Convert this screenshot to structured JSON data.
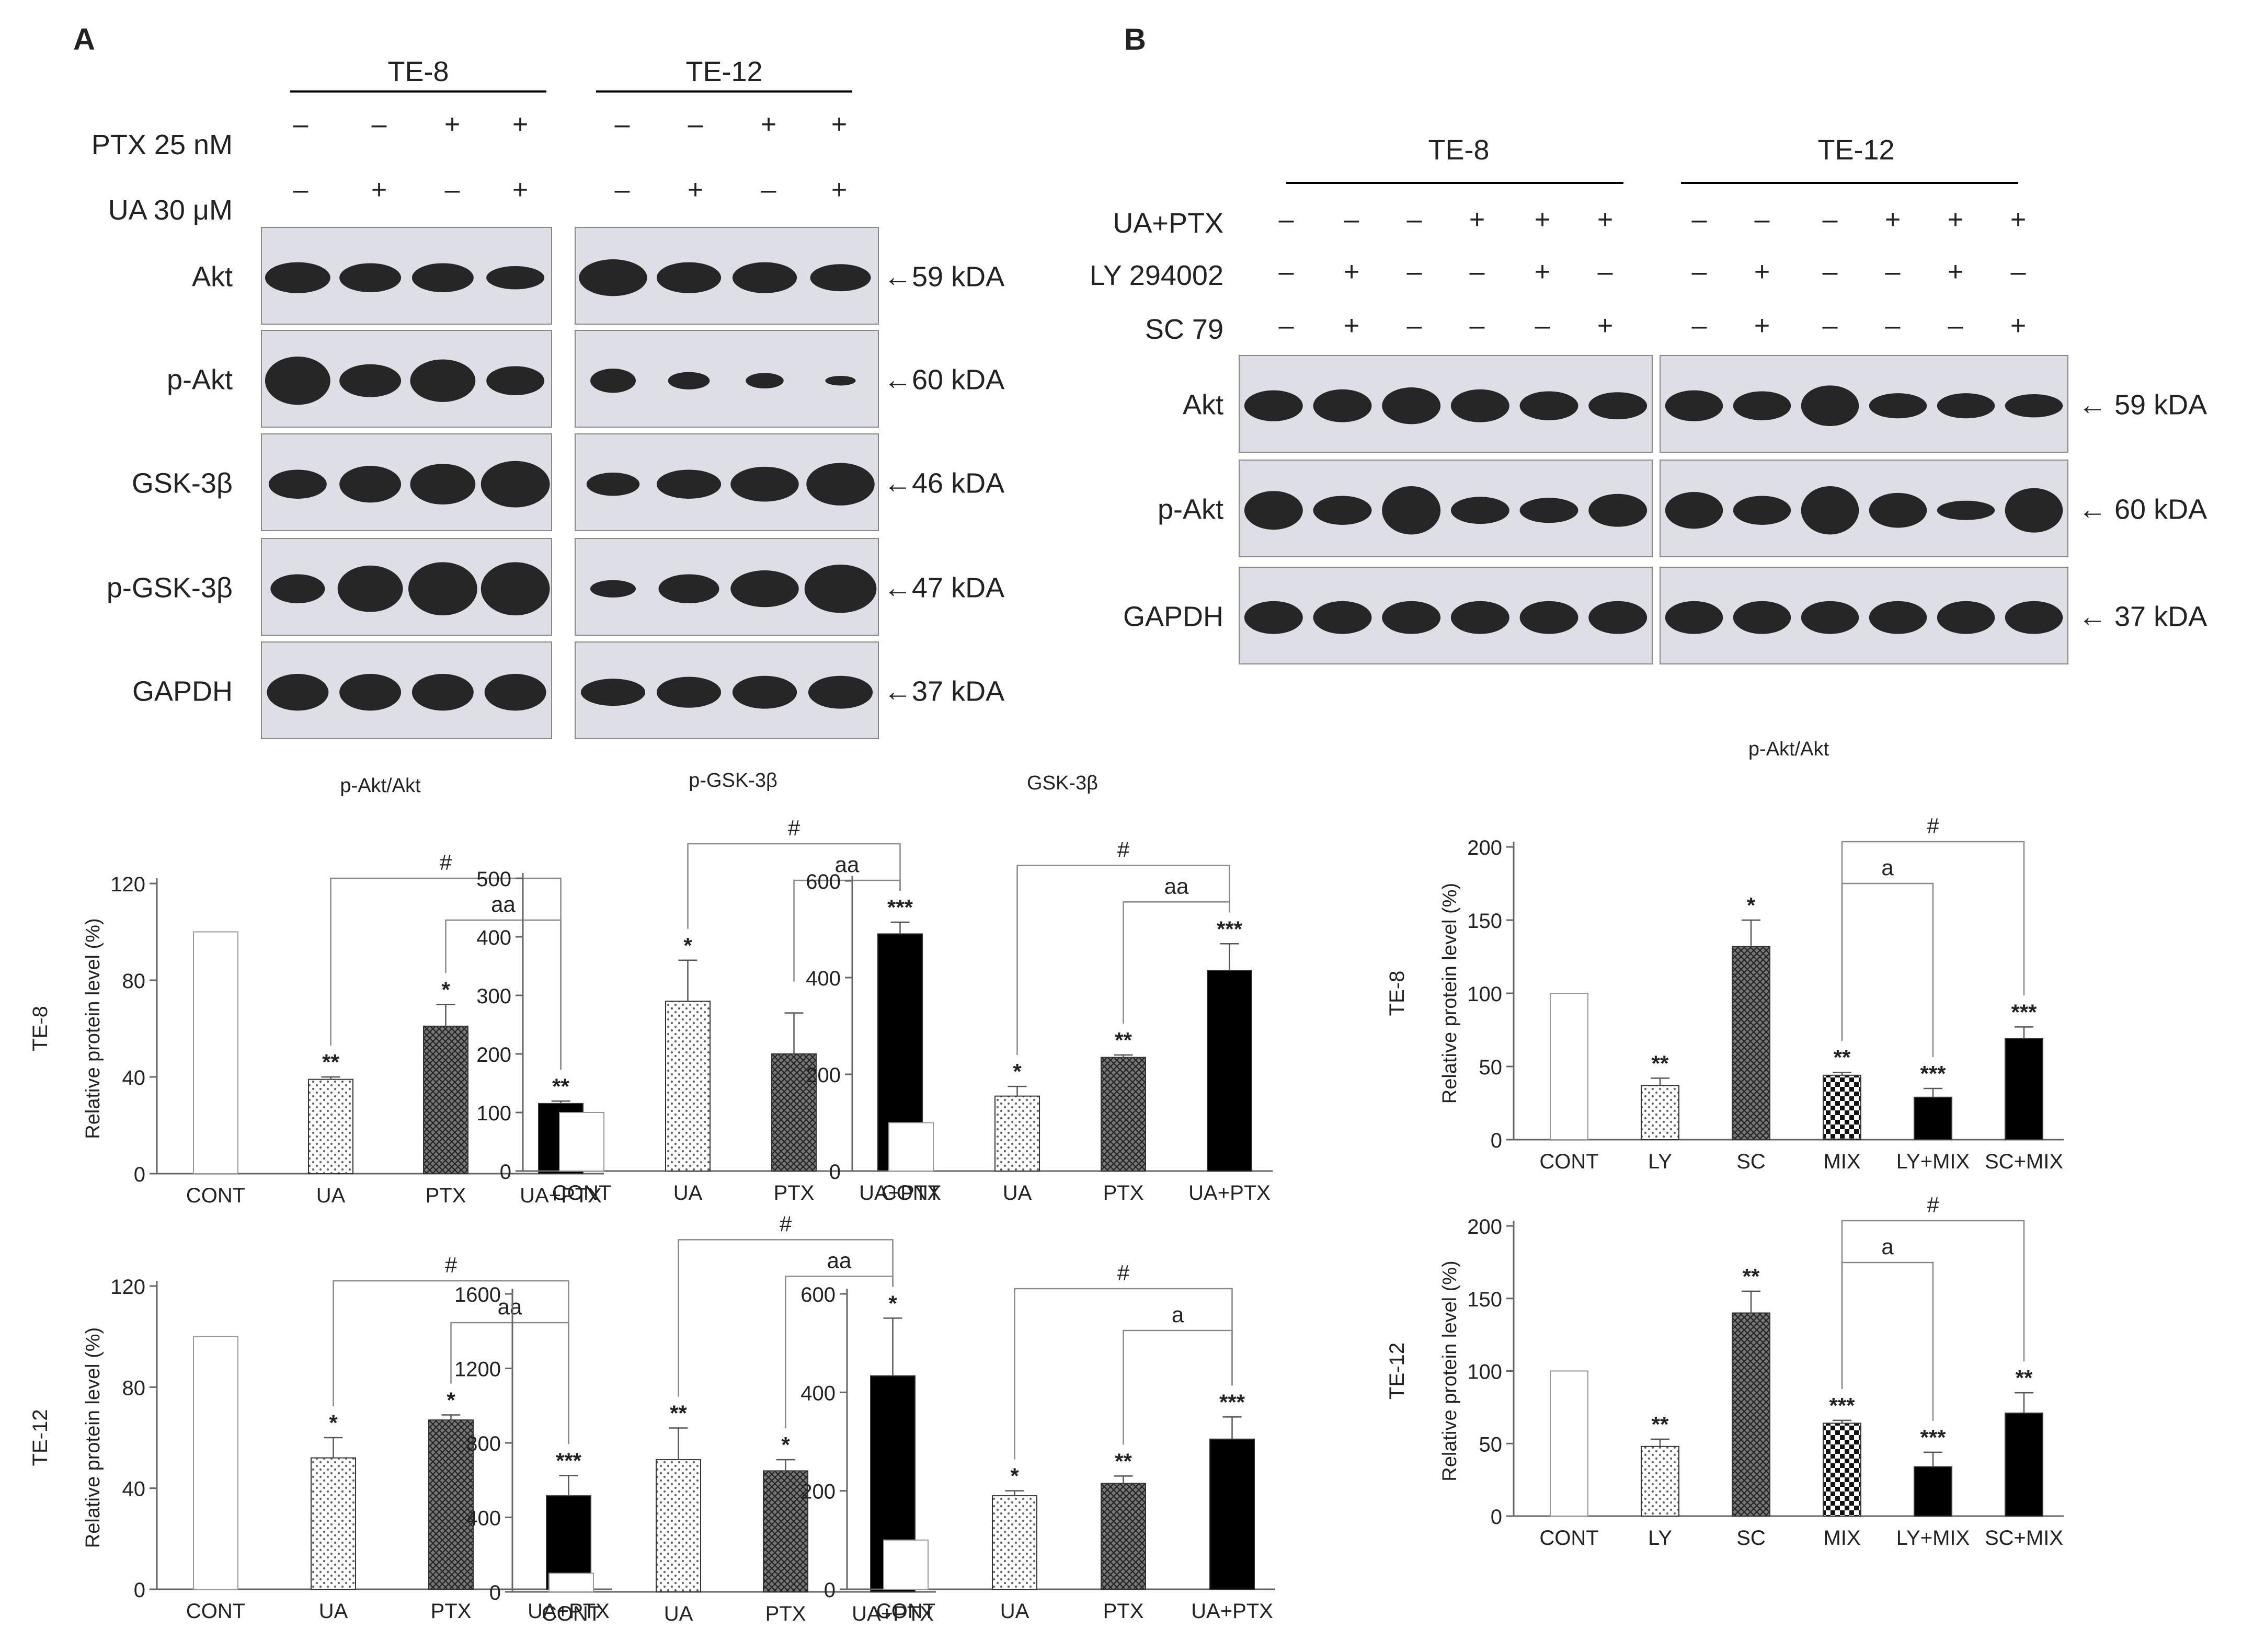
{
  "panel_a": {
    "label": "A",
    "cell_lines": [
      "TE-8",
      "TE-12"
    ],
    "treatment_rows": [
      {
        "label": "PTX 25 nM",
        "te8": [
          "–",
          "–",
          "+",
          "+"
        ],
        "te12": [
          "–",
          "–",
          "+",
          "+"
        ]
      },
      {
        "label": "UA 30 μM",
        "te8": [
          "–",
          "+",
          "–",
          "+"
        ],
        "te12": [
          "–",
          "+",
          "–",
          "+"
        ]
      }
    ],
    "blot_rows": [
      {
        "label": "Akt",
        "kda": "←59 kDA"
      },
      {
        "label": "p-Akt",
        "kda": "←60 kDA"
      },
      {
        "label": "GSK-3β",
        "kda": "←46 kDA"
      },
      {
        "label": "p-GSK-3β",
        "kda": "←47 kDA"
      },
      {
        "label": "GAPDH",
        "kda": "←37 kDA"
      }
    ]
  },
  "panel_b": {
    "label": "B",
    "cell_lines": [
      "TE-8",
      "TE-12"
    ],
    "treatment_rows": [
      {
        "label": "UA+PTX",
        "signs": [
          "–",
          "–",
          "–",
          "+",
          "+",
          "+"
        ]
      },
      {
        "label": "LY 294002",
        "signs": [
          "–",
          "+",
          "–",
          "–",
          "+",
          "–"
        ]
      },
      {
        "label": "SC 79",
        "signs": [
          "–",
          "+",
          "–",
          "–",
          "–",
          "+"
        ]
      }
    ],
    "blot_rows": [
      {
        "label": "Akt",
        "kda": "← 59 kDA"
      },
      {
        "label": "p-Akt",
        "kda": "← 60 kDA"
      },
      {
        "label": "GAPDH",
        "kda": "← 37 kDA"
      }
    ]
  },
  "colors": {
    "black": "#000000",
    "pattern_gray": "#555555",
    "axis": "#666666"
  },
  "chart_data": [
    {
      "id": "a_pakt_te8",
      "type": "bar",
      "title": "p-Akt/Akt",
      "row_label": "TE-8",
      "ylabel": "Relative protein level (%)",
      "categories": [
        "CONT",
        "UA",
        "PTX",
        "UA+PTX"
      ],
      "values": [
        100,
        39,
        61,
        29
      ],
      "errors": [
        0,
        1,
        9,
        1
      ],
      "ylim": [
        0,
        120
      ],
      "yticks": [
        0,
        40,
        80,
        120
      ],
      "stars": [
        "",
        "**",
        "*",
        "**"
      ],
      "fills": [
        "white",
        "dots",
        "cross",
        "black"
      ],
      "brackets": [
        {
          "from": 1,
          "to": 3,
          "label": "#"
        },
        {
          "from": 2,
          "to": 3,
          "label": "aa"
        }
      ]
    },
    {
      "id": "a_pgsk_te8",
      "type": "bar",
      "title": "p-GSK-3β",
      "ylabel": "",
      "categories": [
        "CONT",
        "UA",
        "PTX",
        "UA+PTX"
      ],
      "values": [
        100,
        290,
        200,
        405
      ],
      "errors": [
        0,
        70,
        70,
        20
      ],
      "ylim": [
        0,
        500
      ],
      "yticks": [
        0,
        100,
        200,
        300,
        400,
        500
      ],
      "stars": [
        "",
        "*",
        "",
        "***"
      ],
      "fills": [
        "white",
        "dots",
        "cross",
        "black"
      ],
      "brackets": [
        {
          "from": 1,
          "to": 3,
          "label": "#"
        },
        {
          "from": 2,
          "to": 3,
          "label": "aa"
        }
      ]
    },
    {
      "id": "a_gsk_te8",
      "type": "bar",
      "title": "GSK-3β",
      "ylabel": "",
      "categories": [
        "CONT",
        "UA",
        "PTX",
        "UA+PTX"
      ],
      "values": [
        100,
        155,
        235,
        415
      ],
      "errors": [
        0,
        20,
        5,
        55
      ],
      "ylim": [
        0,
        600
      ],
      "yticks": [
        0,
        200,
        400,
        600
      ],
      "stars": [
        "",
        "*",
        "**",
        "***"
      ],
      "fills": [
        "white",
        "dots",
        "cross",
        "black"
      ],
      "brackets": [
        {
          "from": 1,
          "to": 3,
          "label": "#"
        },
        {
          "from": 2,
          "to": 3,
          "label": "aa"
        }
      ]
    },
    {
      "id": "a_pakt_te12",
      "type": "bar",
      "row_label": "TE-12",
      "ylabel": "Relative protein level (%)",
      "categories": [
        "CONT",
        "UA",
        "PTX",
        "UA+PTX"
      ],
      "values": [
        100,
        52,
        67,
        37
      ],
      "errors": [
        0,
        8,
        2,
        8
      ],
      "ylim": [
        0,
        120
      ],
      "yticks": [
        0,
        40,
        80,
        120
      ],
      "stars": [
        "",
        "*",
        "*",
        "***"
      ],
      "fills": [
        "white",
        "dots",
        "cross",
        "black"
      ],
      "brackets": [
        {
          "from": 1,
          "to": 3,
          "label": "#"
        },
        {
          "from": 2,
          "to": 3,
          "label": "aa"
        }
      ]
    },
    {
      "id": "a_pgsk_te12",
      "type": "bar",
      "ylabel": "",
      "categories": [
        "CONT",
        "UA",
        "PTX",
        "UA+PTX"
      ],
      "values": [
        100,
        710,
        650,
        1160
      ],
      "errors": [
        0,
        170,
        60,
        310
      ],
      "ylim": [
        0,
        1600
      ],
      "yticks": [
        0,
        400,
        800,
        1200,
        1600
      ],
      "stars": [
        "",
        "**",
        "*",
        "*"
      ],
      "fills": [
        "white",
        "dots",
        "cross",
        "black"
      ],
      "brackets": [
        {
          "from": 1,
          "to": 3,
          "label": "#"
        },
        {
          "from": 2,
          "to": 3,
          "label": "aa"
        }
      ]
    },
    {
      "id": "a_gsk_te12",
      "type": "bar",
      "ylabel": "",
      "categories": [
        "CONT",
        "UA",
        "PTX",
        "UA+PTX"
      ],
      "values": [
        100,
        190,
        215,
        305
      ],
      "errors": [
        0,
        10,
        15,
        45
      ],
      "ylim": [
        0,
        600
      ],
      "yticks": [
        0,
        200,
        400,
        600
      ],
      "stars": [
        "",
        "*",
        "**",
        "***"
      ],
      "fills": [
        "white",
        "dots",
        "cross",
        "black"
      ],
      "brackets": [
        {
          "from": 1,
          "to": 3,
          "label": "#"
        },
        {
          "from": 2,
          "to": 3,
          "label": "a"
        }
      ]
    },
    {
      "id": "b_pakt_te8",
      "type": "bar",
      "title": "p-Akt/Akt",
      "row_label": "TE-8",
      "ylabel": "Relative protein level (%)",
      "categories": [
        "CONT",
        "LY",
        "SC",
        "MIX",
        "LY+MIX",
        "SC+MIX"
      ],
      "values": [
        100,
        37,
        132,
        44,
        29,
        69
      ],
      "errors": [
        0,
        5,
        18,
        2,
        6,
        8
      ],
      "ylim": [
        0,
        200
      ],
      "yticks": [
        0,
        50,
        100,
        150,
        200
      ],
      "stars": [
        "",
        "**",
        "*",
        "**",
        "***",
        "***"
      ],
      "fills": [
        "white",
        "dots",
        "cross",
        "checker",
        "black",
        "black"
      ],
      "brackets": [
        {
          "from": 3,
          "to": 5,
          "label": "#"
        },
        {
          "from": 3,
          "to": 4,
          "label": "a"
        }
      ]
    },
    {
      "id": "b_pakt_te12",
      "type": "bar",
      "row_label": "TE-12",
      "ylabel": "Relative protein level (%)",
      "categories": [
        "CONT",
        "LY",
        "SC",
        "MIX",
        "LY+MIX",
        "SC+MIX"
      ],
      "values": [
        100,
        48,
        140,
        64,
        34,
        71
      ],
      "errors": [
        0,
        5,
        15,
        2,
        10,
        14
      ],
      "ylim": [
        0,
        200
      ],
      "yticks": [
        0,
        50,
        100,
        150,
        200
      ],
      "stars": [
        "",
        "**",
        "**",
        "***",
        "***",
        "**"
      ],
      "fills": [
        "white",
        "dots",
        "cross",
        "checker",
        "black",
        "black"
      ],
      "brackets": [
        {
          "from": 3,
          "to": 5,
          "label": "#"
        },
        {
          "from": 3,
          "to": 4,
          "label": "a"
        }
      ]
    }
  ]
}
